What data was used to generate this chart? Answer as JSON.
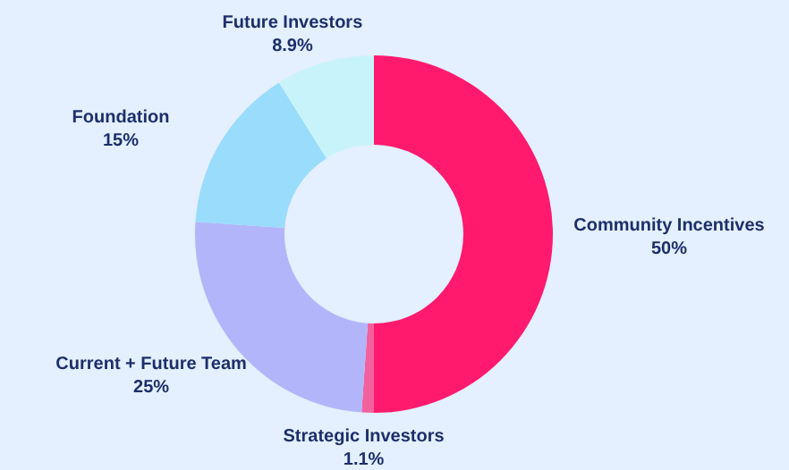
{
  "chart_data": {
    "type": "donut",
    "categories": [
      "Community Incentives",
      "Strategic Investors",
      "Current + Future Team",
      "Foundation",
      "Future Investors"
    ],
    "values": [
      50,
      1.1,
      25,
      15,
      8.9
    ],
    "value_labels": [
      "50%",
      "1.1%",
      "25%",
      "15%",
      "8.9%"
    ],
    "colors": [
      "#ff1a6e",
      "#f2609e",
      "#b3b5fb",
      "#99dcfc",
      "#c9f3fb"
    ],
    "legend": false
  }
}
